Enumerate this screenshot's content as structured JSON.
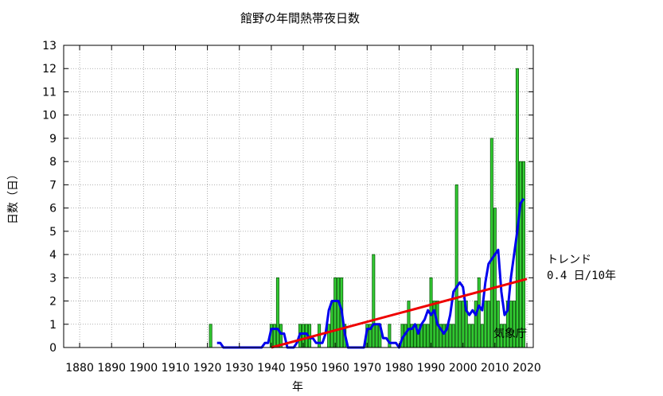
{
  "chart_data": {
    "type": "bar",
    "title": "館野の年間熱帯夜日数",
    "xlabel": "年",
    "ylabel": "日数（日）",
    "xlim": [
      1875,
      2022
    ],
    "ylim": [
      0,
      13
    ],
    "xticks": [
      1880,
      1890,
      1900,
      1910,
      1920,
      1930,
      1940,
      1950,
      1960,
      1970,
      1980,
      1990,
      2000,
      2010,
      2020
    ],
    "yticks": [
      0,
      1,
      2,
      3,
      4,
      5,
      6,
      7,
      8,
      9,
      10,
      11,
      12,
      13
    ],
    "grid": true,
    "series": [
      {
        "type": "bar",
        "color": "#33cc33",
        "points": [
          [
            1921,
            1
          ],
          [
            1922,
            0
          ],
          [
            1923,
            0
          ],
          [
            1924,
            0
          ],
          [
            1925,
            0
          ],
          [
            1926,
            0
          ],
          [
            1927,
            0
          ],
          [
            1928,
            0
          ],
          [
            1929,
            0
          ],
          [
            1930,
            0
          ],
          [
            1931,
            0
          ],
          [
            1932,
            0
          ],
          [
            1933,
            0
          ],
          [
            1934,
            0
          ],
          [
            1935,
            0
          ],
          [
            1936,
            0
          ],
          [
            1937,
            0
          ],
          [
            1938,
            0
          ],
          [
            1939,
            0
          ],
          [
            1940,
            1
          ],
          [
            1941,
            1
          ],
          [
            1942,
            3
          ],
          [
            1943,
            1
          ],
          [
            1944,
            0
          ],
          [
            1945,
            0
          ],
          [
            1946,
            0
          ],
          [
            1947,
            0
          ],
          [
            1948,
            0
          ],
          [
            1949,
            1
          ],
          [
            1950,
            1
          ],
          [
            1951,
            1
          ],
          [
            1952,
            1
          ],
          [
            1953,
            0
          ],
          [
            1954,
            0
          ],
          [
            1955,
            1
          ],
          [
            1956,
            0
          ],
          [
            1957,
            0
          ],
          [
            1958,
            1
          ],
          [
            1959,
            2
          ],
          [
            1960,
            3
          ],
          [
            1961,
            3
          ],
          [
            1962,
            3
          ],
          [
            1963,
            1
          ],
          [
            1964,
            0
          ],
          [
            1965,
            0
          ],
          [
            1966,
            0
          ],
          [
            1967,
            0
          ],
          [
            1968,
            0
          ],
          [
            1969,
            0
          ],
          [
            1970,
            1
          ],
          [
            1971,
            1
          ],
          [
            1972,
            4
          ],
          [
            1973,
            1
          ],
          [
            1974,
            1
          ],
          [
            1975,
            0
          ],
          [
            1976,
            0
          ],
          [
            1977,
            1
          ],
          [
            1978,
            0
          ],
          [
            1979,
            0
          ],
          [
            1980,
            0
          ],
          [
            1981,
            1
          ],
          [
            1982,
            1
          ],
          [
            1983,
            2
          ],
          [
            1984,
            1
          ],
          [
            1985,
            1
          ],
          [
            1986,
            1
          ],
          [
            1987,
            1
          ],
          [
            1988,
            1
          ],
          [
            1989,
            1
          ],
          [
            1990,
            3
          ],
          [
            1991,
            2
          ],
          [
            1992,
            2
          ],
          [
            1993,
            1
          ],
          [
            1994,
            1
          ],
          [
            1995,
            1
          ],
          [
            1996,
            1
          ],
          [
            1997,
            1
          ],
          [
            1998,
            7
          ],
          [
            1999,
            2
          ],
          [
            2000,
            2
          ],
          [
            2001,
            2
          ],
          [
            2002,
            1
          ],
          [
            2003,
            1
          ],
          [
            2004,
            2
          ],
          [
            2005,
            3
          ],
          [
            2006,
            1
          ],
          [
            2007,
            2
          ],
          [
            2008,
            2
          ],
          [
            2009,
            9
          ],
          [
            2010,
            6
          ],
          [
            2011,
            2
          ],
          [
            2012,
            1
          ],
          [
            2013,
            1
          ],
          [
            2014,
            2
          ],
          [
            2015,
            2
          ],
          [
            2016,
            2
          ],
          [
            2017,
            12
          ],
          [
            2018,
            8
          ],
          [
            2019,
            8
          ]
        ]
      },
      {
        "type": "line",
        "color": "#0000ee",
        "points": [
          [
            1923,
            0.2
          ],
          [
            1924,
            0.2
          ],
          [
            1925,
            0
          ],
          [
            1926,
            0
          ],
          [
            1927,
            0
          ],
          [
            1928,
            0
          ],
          [
            1929,
            0
          ],
          [
            1930,
            0
          ],
          [
            1931,
            0
          ],
          [
            1932,
            0
          ],
          [
            1933,
            0
          ],
          [
            1934,
            0
          ],
          [
            1935,
            0
          ],
          [
            1936,
            0
          ],
          [
            1937,
            0
          ],
          [
            1938,
            0.2
          ],
          [
            1939,
            0.2
          ],
          [
            1940,
            0.8
          ],
          [
            1941,
            0.8
          ],
          [
            1942,
            0.8
          ],
          [
            1943,
            0.6
          ],
          [
            1944,
            0.6
          ],
          [
            1945,
            0
          ],
          [
            1946,
            0
          ],
          [
            1947,
            0
          ],
          [
            1948,
            0.2
          ],
          [
            1949,
            0.6
          ],
          [
            1950,
            0.6
          ],
          [
            1951,
            0.6
          ],
          [
            1952,
            0.4
          ],
          [
            1953,
            0.4
          ],
          [
            1954,
            0.2
          ],
          [
            1955,
            0.2
          ],
          [
            1956,
            0.2
          ],
          [
            1957,
            0.6
          ],
          [
            1958,
            1.6
          ],
          [
            1959,
            2
          ],
          [
            1960,
            2
          ],
          [
            1961,
            2
          ],
          [
            1962,
            1.6
          ],
          [
            1963,
            0.6
          ],
          [
            1964,
            0
          ],
          [
            1965,
            0
          ],
          [
            1966,
            0
          ],
          [
            1967,
            0
          ],
          [
            1968,
            0
          ],
          [
            1969,
            0
          ],
          [
            1970,
            0.8
          ],
          [
            1971,
            0.8
          ],
          [
            1972,
            1
          ],
          [
            1973,
            1
          ],
          [
            1974,
            1
          ],
          [
            1975,
            0.4
          ],
          [
            1976,
            0.4
          ],
          [
            1977,
            0.2
          ],
          [
            1978,
            0.2
          ],
          [
            1979,
            0.2
          ],
          [
            1980,
            0
          ],
          [
            1981,
            0.4
          ],
          [
            1982,
            0.6
          ],
          [
            1983,
            0.8
          ],
          [
            1984,
            0.8
          ],
          [
            1985,
            1
          ],
          [
            1986,
            0.6
          ],
          [
            1987,
            1
          ],
          [
            1988,
            1.2
          ],
          [
            1989,
            1.6
          ],
          [
            1990,
            1.4
          ],
          [
            1991,
            1.6
          ],
          [
            1992,
            1
          ],
          [
            1993,
            0.8
          ],
          [
            1994,
            0.6
          ],
          [
            1995,
            0.8
          ],
          [
            1996,
            1.4
          ],
          [
            1997,
            2.4
          ],
          [
            1998,
            2.6
          ],
          [
            1999,
            2.8
          ],
          [
            2000,
            2.6
          ],
          [
            2001,
            1.6
          ],
          [
            2002,
            1.4
          ],
          [
            2003,
            1.6
          ],
          [
            2004,
            1.4
          ],
          [
            2005,
            1.8
          ],
          [
            2006,
            1.6
          ],
          [
            2007,
            2.8
          ],
          [
            2008,
            3.6
          ],
          [
            2009,
            3.8
          ],
          [
            2010,
            4
          ],
          [
            2011,
            4.2
          ],
          [
            2012,
            2.4
          ],
          [
            2013,
            1.4
          ],
          [
            2014,
            1.6
          ],
          [
            2015,
            3
          ],
          [
            2016,
            4
          ],
          [
            2017,
            5
          ],
          [
            2018,
            6.2
          ],
          [
            2019,
            6.4
          ]
        ]
      },
      {
        "type": "line",
        "color": "#ee0000",
        "points": [
          [
            1940,
            0
          ],
          [
            2020,
            2.95
          ]
        ]
      }
    ],
    "trend_label": "トレンド",
    "trend_value": "0.4 日/10年",
    "credit": "気象庁"
  }
}
